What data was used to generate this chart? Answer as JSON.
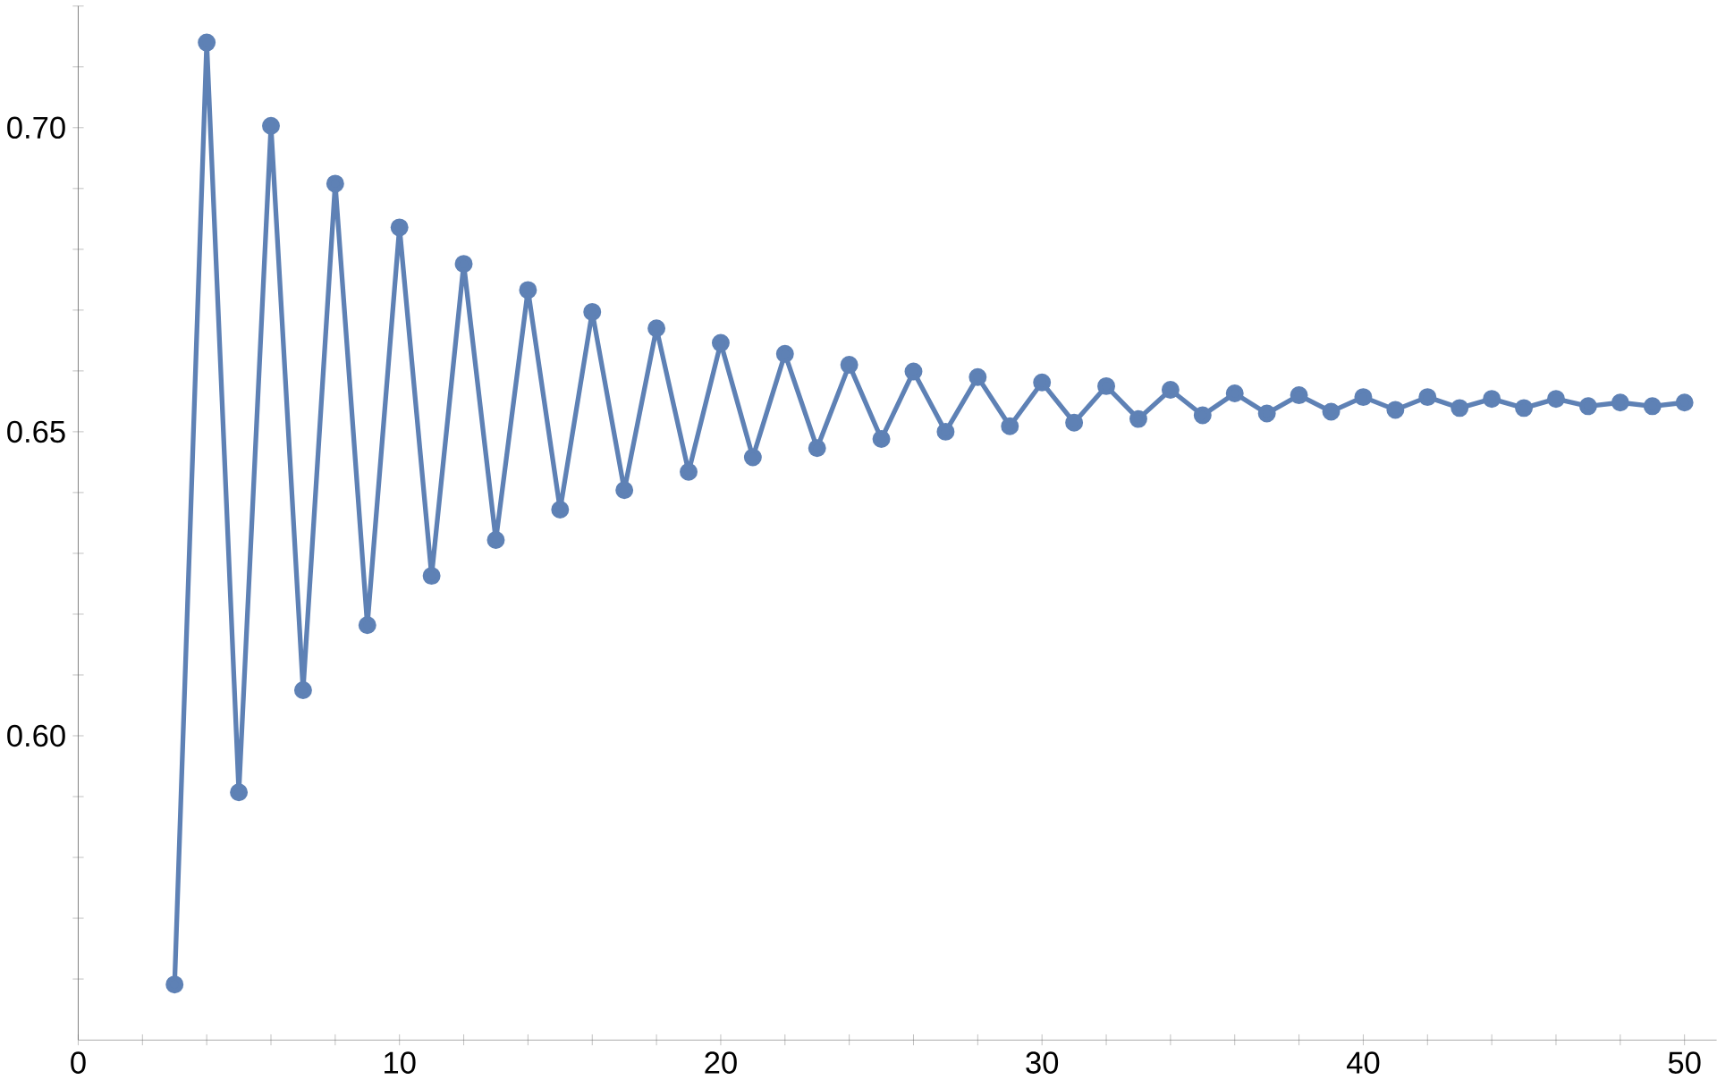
{
  "chart_data": {
    "type": "line",
    "marker": "circle",
    "line_style": "solid",
    "grid": false,
    "x": [
      3,
      4,
      5,
      6,
      7,
      8,
      9,
      10,
      11,
      12,
      13,
      14,
      15,
      16,
      17,
      18,
      19,
      20,
      21,
      22,
      23,
      24,
      25,
      26,
      27,
      28,
      29,
      30,
      31,
      32,
      33,
      34,
      35,
      36,
      37,
      38,
      39,
      40,
      41,
      42,
      43,
      44,
      45,
      46,
      47,
      48,
      49,
      50
    ],
    "series": [
      {
        "color": "#5e81b5",
        "values": [
          0.5591,
          0.714,
          0.5907,
          0.7003,
          0.6075,
          0.6908,
          0.6182,
          0.6836,
          0.6263,
          0.6776,
          0.6322,
          0.6733,
          0.6372,
          0.6697,
          0.6404,
          0.667,
          0.6434,
          0.6646,
          0.6458,
          0.6628,
          0.6473,
          0.661,
          0.6488,
          0.6599,
          0.65,
          0.659,
          0.6509,
          0.6581,
          0.6515,
          0.6575,
          0.6521,
          0.6569,
          0.6527,
          0.6563,
          0.653,
          0.656,
          0.6533,
          0.6557,
          0.6536,
          0.6557,
          0.6539,
          0.6554,
          0.6539,
          0.6554,
          0.6542,
          0.6548,
          0.6542,
          0.6548
        ],
        "errors": [
          0.001,
          0.001,
          0.001,
          0.001,
          0.001,
          0.001,
          0.001,
          0.001,
          0.001,
          0.001,
          0.001,
          0.001,
          0.001,
          0.001,
          0.001,
          0.001,
          0.001,
          null,
          null,
          null,
          null,
          null,
          null,
          null,
          null,
          null,
          null,
          null,
          null,
          null,
          null,
          null,
          null,
          null,
          null,
          null,
          null,
          null,
          null,
          null,
          null,
          null,
          null,
          null,
          null,
          null,
          null,
          null
        ]
      }
    ],
    "xlim": [
      0,
      51
    ],
    "ylim": [
      0.55,
      0.72
    ],
    "xticks": [
      0,
      {
        "value": 2,
        "label": null
      },
      {
        "value": 4,
        "label": null
      },
      {
        "value": 6,
        "label": null
      },
      {
        "value": 8,
        "label": null
      },
      10,
      {
        "value": 12,
        "label": null
      },
      {
        "value": 14,
        "label": null
      },
      {
        "value": 16,
        "label": null
      },
      {
        "value": 18,
        "label": null
      },
      20,
      {
        "value": 22,
        "label": null
      },
      {
        "value": 24,
        "label": null
      },
      {
        "value": 26,
        "label": null
      },
      {
        "value": 28,
        "label": null
      },
      30,
      {
        "value": 32,
        "label": null
      },
      {
        "value": 34,
        "label": null
      },
      {
        "value": 36,
        "label": null
      },
      {
        "value": 38,
        "label": null
      },
      40,
      {
        "value": 42,
        "label": null
      },
      {
        "value": 44,
        "label": null
      },
      {
        "value": 46,
        "label": null
      },
      {
        "value": 48,
        "label": null
      },
      50
    ],
    "yticks": [
      {
        "value": 0.56,
        "label": null
      },
      {
        "value": 0.57,
        "label": null
      },
      {
        "value": 0.58,
        "label": null
      },
      {
        "value": 0.59,
        "label": null
      },
      {
        "value": 0.6,
        "label": "0.60"
      },
      {
        "value": 0.61,
        "label": null
      },
      {
        "value": 0.62,
        "label": null
      },
      {
        "value": 0.63,
        "label": null
      },
      {
        "value": 0.64,
        "label": null
      },
      {
        "value": 0.65,
        "label": "0.65"
      },
      {
        "value": 0.66,
        "label": null
      },
      {
        "value": 0.67,
        "label": null
      },
      {
        "value": 0.68,
        "label": null
      },
      {
        "value": 0.69,
        "label": null
      },
      {
        "value": 0.7,
        "label": "0.70"
      },
      {
        "value": 0.71,
        "label": null
      },
      {
        "value": 0.72,
        "label": null
      }
    ]
  }
}
